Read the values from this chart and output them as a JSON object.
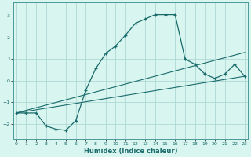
{
  "xlabel": "Humidex (Indice chaleur)",
  "background_color": "#d8f5f0",
  "grid_color": "#aed8d4",
  "line_color": "#1a6b6b",
  "x_ticks": [
    0,
    1,
    2,
    3,
    4,
    5,
    6,
    7,
    8,
    9,
    10,
    11,
    12,
    13,
    14,
    15,
    16,
    17,
    18,
    19,
    20,
    21,
    22,
    23
  ],
  "y_ticks": [
    -2,
    -1,
    0,
    1,
    2,
    3
  ],
  "ylim": [
    -2.7,
    3.6
  ],
  "xlim": [
    -0.3,
    23.3
  ],
  "curve1_x": [
    0,
    1,
    2,
    3,
    4,
    5,
    6,
    7,
    8,
    9,
    10,
    11,
    12,
    13,
    14,
    15,
    16,
    17,
    18,
    19,
    20,
    21,
    22,
    23
  ],
  "curve1_y": [
    -1.5,
    -1.5,
    -1.5,
    -2.1,
    -2.25,
    -2.3,
    -1.85,
    -0.45,
    0.55,
    1.25,
    1.6,
    2.1,
    2.65,
    2.85,
    3.05,
    3.05,
    3.05,
    1.0,
    0.75,
    0.3,
    0.1,
    0.3,
    0.75,
    0.2
  ],
  "curve2_x": [
    0,
    23
  ],
  "curve2_y": [
    -1.5,
    0.2
  ],
  "curve3_x": [
    0,
    23
  ],
  "curve3_y": [
    -1.5,
    1.3
  ]
}
